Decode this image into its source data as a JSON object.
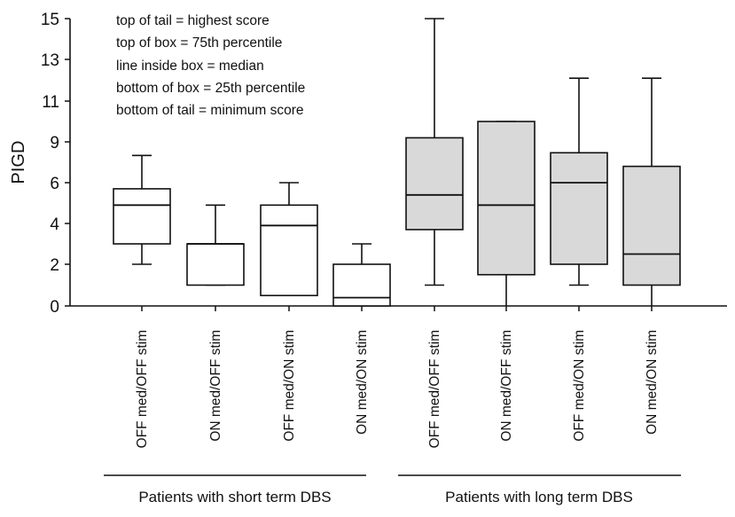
{
  "chart_data": {
    "type": "box",
    "ylabel": "PIGD",
    "ylim": [
      0,
      15
    ],
    "yticks": [
      0,
      2,
      4,
      6,
      9,
      11,
      13,
      15
    ],
    "ytick_labels": [
      "0",
      "2",
      "4",
      "6",
      "9",
      "11",
      "13",
      "15"
    ],
    "legend": [
      "top of tail = highest score",
      "top of box = 75th percentile",
      "line inside box = median",
      "bottom of box = 25th percentile",
      "bottom of tail = minimum score"
    ],
    "groups": [
      {
        "label": "Patients with short term DBS",
        "categories": [
          0,
          1,
          2,
          3
        ]
      },
      {
        "label": "Patients with long term DBS",
        "categories": [
          4,
          5,
          6,
          7
        ]
      }
    ],
    "series": [
      {
        "name": "OFF med/OFF stim",
        "group": "short",
        "min": 2.0,
        "q1": 3.0,
        "median": 4.9,
        "q3": 5.7,
        "max": 8.0,
        "fill": "#ffffff"
      },
      {
        "name": "ON med/OFF stim",
        "group": "short",
        "min": 1.0,
        "q1": 1.0,
        "median": 3.0,
        "q3": 3.0,
        "max": 4.9,
        "fill": "#ffffff"
      },
      {
        "name": "OFF med/ON stim",
        "group": "short",
        "min": 0.5,
        "q1": 0.5,
        "median": 3.9,
        "q3": 4.9,
        "max": 6.0,
        "fill": "#ffffff"
      },
      {
        "name": "ON med/ON stim",
        "group": "short",
        "min": 0.0,
        "q1": 0.0,
        "median": 0.4,
        "q3": 2.0,
        "max": 3.0,
        "fill": "#ffffff"
      },
      {
        "name": "OFF med/OFF stim",
        "group": "long",
        "min": 1.0,
        "q1": 3.7,
        "median": 5.4,
        "q3": 9.2,
        "max": 15.0,
        "fill": "#d9d9d9"
      },
      {
        "name": "ON med/OFF stim",
        "group": "long",
        "min": 0.0,
        "q1": 1.5,
        "median": 4.9,
        "q3": 10.0,
        "max": 10.0,
        "fill": "#d9d9d9"
      },
      {
        "name": "OFF med/ON stim",
        "group": "long",
        "min": 1.0,
        "q1": 2.0,
        "median": 6.0,
        "q3": 8.2,
        "max": 12.1,
        "fill": "#d9d9d9"
      },
      {
        "name": "ON med/ON stim",
        "group": "long",
        "min": 0.0,
        "q1": 1.0,
        "median": 2.5,
        "q3": 7.2,
        "max": 12.1,
        "fill": "#d9d9d9"
      }
    ]
  }
}
